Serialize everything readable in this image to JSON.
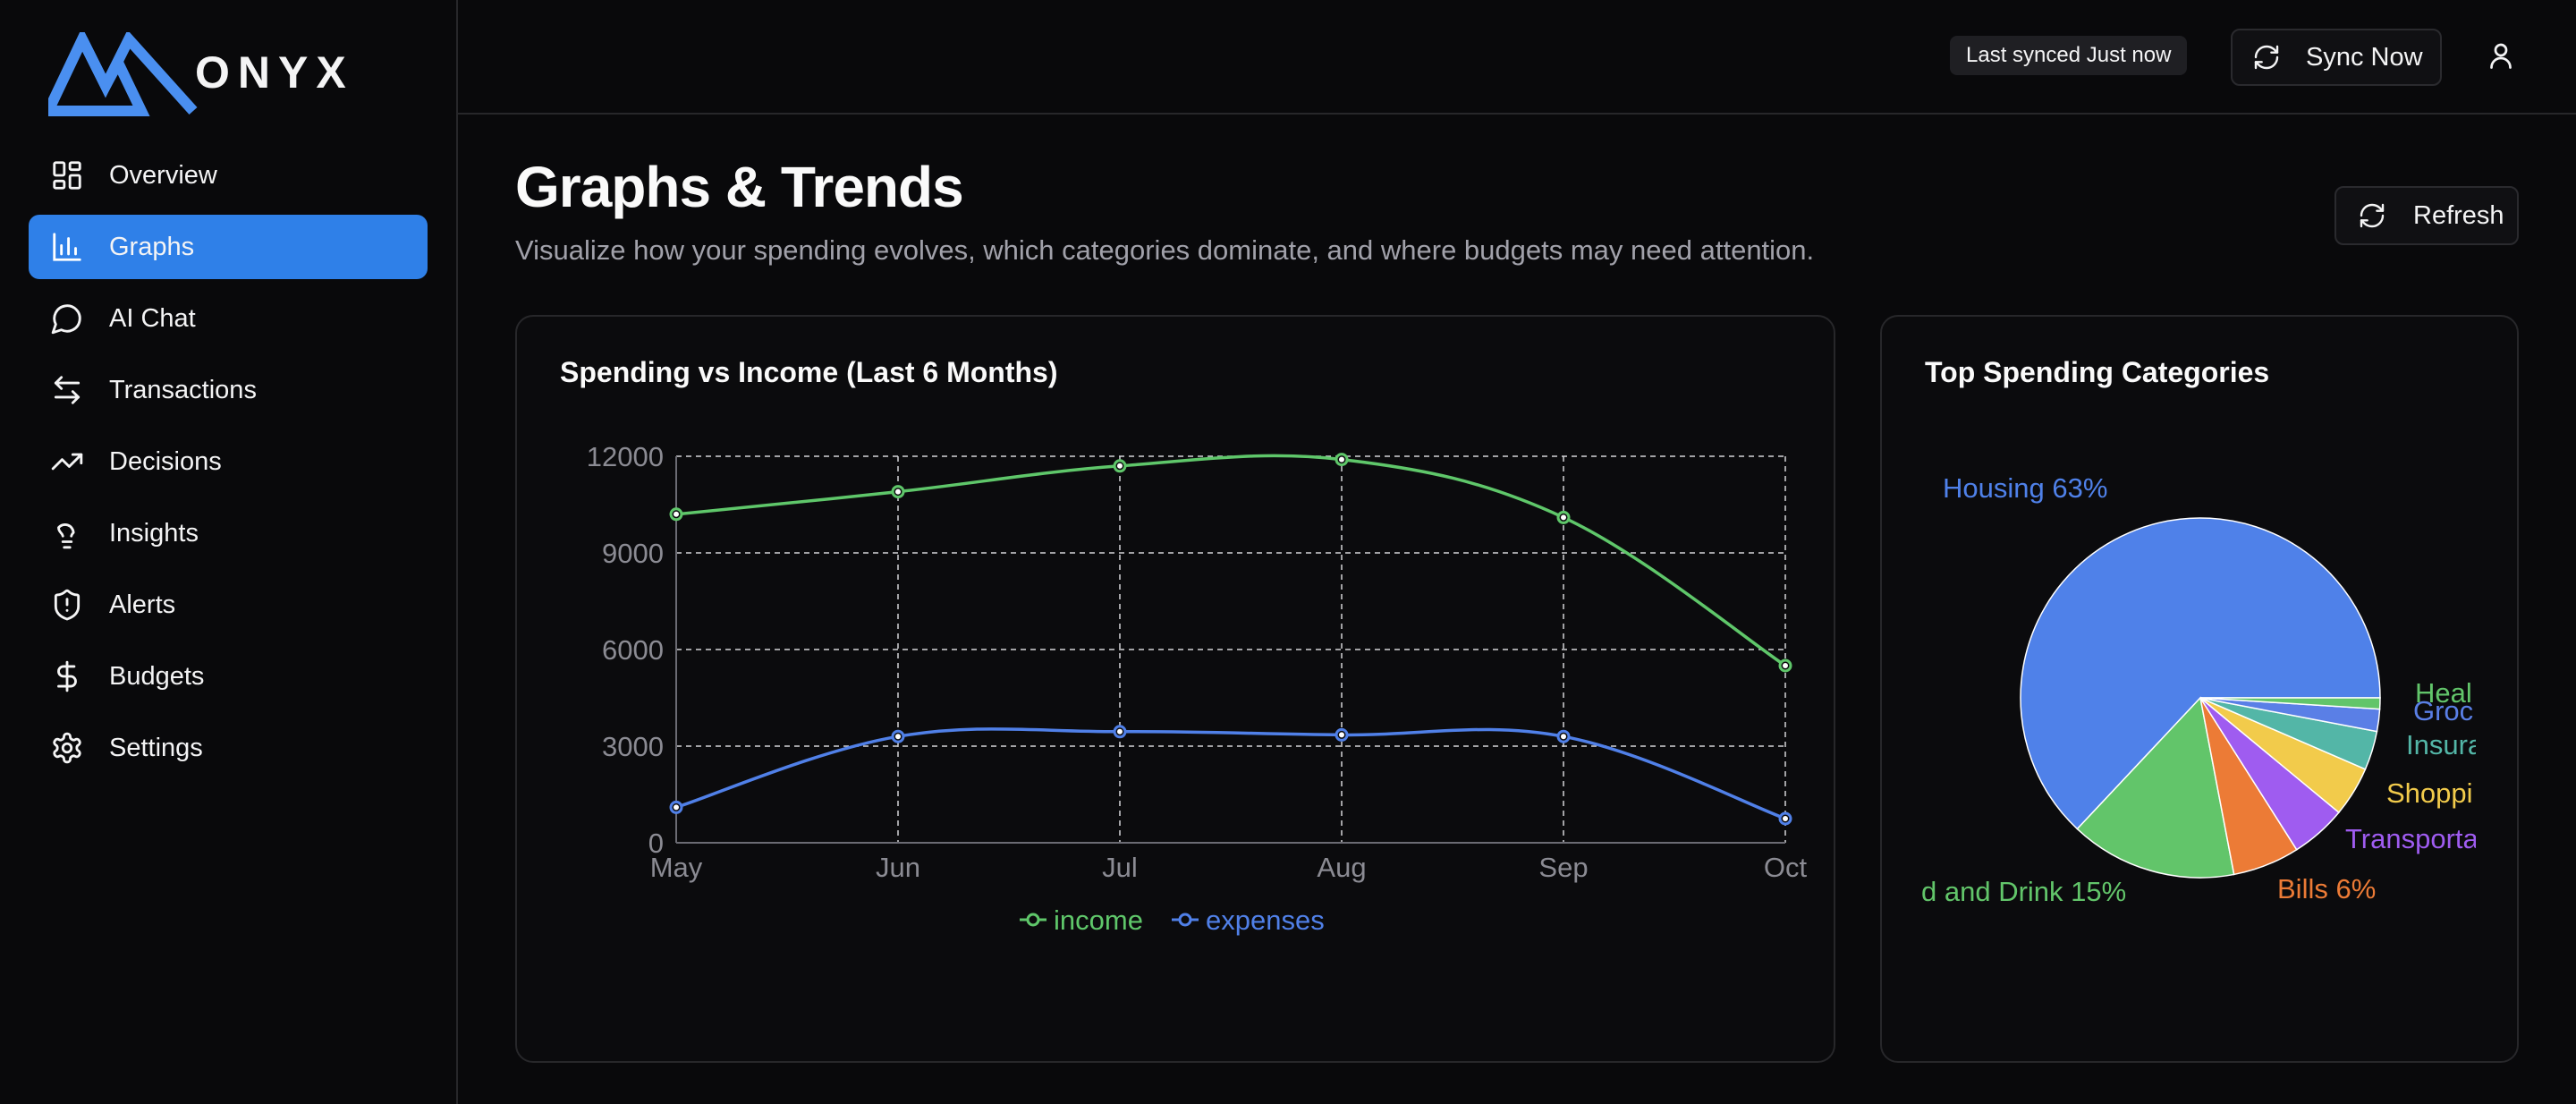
{
  "app": {
    "name": "ONYX"
  },
  "sidebar": {
    "items": [
      {
        "label": "Overview",
        "icon": "layout-dashboard-icon",
        "active": false
      },
      {
        "label": "Graphs",
        "icon": "bar-chart-icon",
        "active": true
      },
      {
        "label": "AI Chat",
        "icon": "message-circle-icon",
        "active": false
      },
      {
        "label": "Transactions",
        "icon": "arrows-left-right-icon",
        "active": false
      },
      {
        "label": "Decisions",
        "icon": "trending-up-icon",
        "active": false
      },
      {
        "label": "Insights",
        "icon": "lightbulb-icon",
        "active": false
      },
      {
        "label": "Alerts",
        "icon": "shield-alert-icon",
        "active": false
      },
      {
        "label": "Budgets",
        "icon": "dollar-sign-icon",
        "active": false
      },
      {
        "label": "Settings",
        "icon": "gear-icon",
        "active": false
      }
    ]
  },
  "header": {
    "sync_status": "Last synced Just now",
    "sync_button": "Sync Now"
  },
  "page": {
    "title": "Graphs & Trends",
    "subtitle": "Visualize how your spending evolves, which categories dominate, and where budgets may need attention.",
    "refresh_button": "Refresh"
  },
  "colors": {
    "accent": "#2f80e8",
    "income": "#5fc76a",
    "expenses": "#5080e8"
  },
  "chart_data": [
    {
      "type": "line",
      "title": "Spending vs Income (Last 6 Months)",
      "x": [
        "May",
        "Jun",
        "Jul",
        "Aug",
        "Sep",
        "Oct"
      ],
      "ylim": [
        0,
        12000
      ],
      "yticks": [
        0,
        3000,
        6000,
        9000,
        12000
      ],
      "grid": true,
      "legend_position": "bottom",
      "series": [
        {
          "name": "income",
          "color": "#5fc76a",
          "values": [
            10200,
            10900,
            11700,
            11900,
            10100,
            5500
          ]
        },
        {
          "name": "expenses",
          "color": "#5080e8",
          "values": [
            1100,
            3300,
            3450,
            3350,
            3300,
            750
          ]
        }
      ]
    },
    {
      "type": "pie",
      "title": "Top Spending Categories",
      "slices": [
        {
          "name": "Housing",
          "label": "Housing 63%",
          "value": 63,
          "color": "#4f81e9"
        },
        {
          "name": "Food and Drink",
          "label": "d and Drink 15%",
          "value": 15,
          "color": "#62c56a"
        },
        {
          "name": "Bills",
          "label": "Bills 6%",
          "value": 6,
          "color": "#ec7b36"
        },
        {
          "name": "Transportation",
          "label": "Transporta",
          "value": 5,
          "color": "#9f5cf0"
        },
        {
          "name": "Shopping",
          "label": "Shoppi",
          "value": 4.5,
          "color": "#f2cb4b"
        },
        {
          "name": "Insurance",
          "label": "Insura",
          "value": 3.5,
          "color": "#53b6a7"
        },
        {
          "name": "Groceries",
          "label": "Groc",
          "value": 2,
          "color": "#5a7fe6"
        },
        {
          "name": "Health",
          "label": "Heal",
          "value": 1,
          "color": "#62c56a"
        }
      ]
    }
  ]
}
